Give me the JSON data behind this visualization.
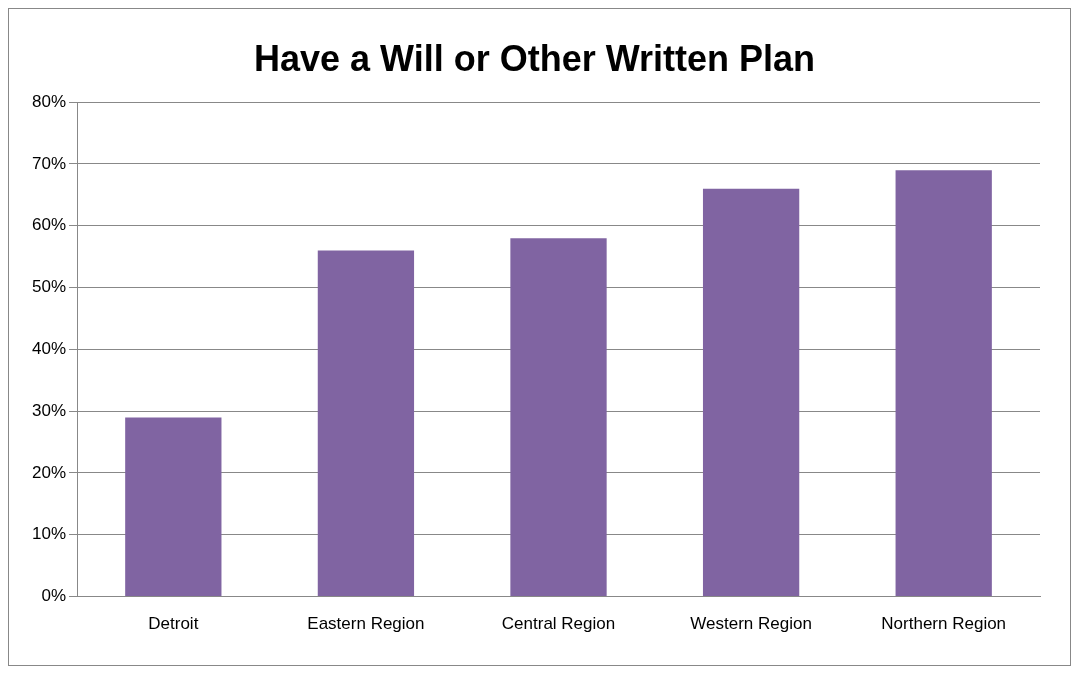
{
  "chart_data": {
    "type": "bar",
    "title": "Have a Will or Other Written Plan",
    "categories": [
      "Detroit",
      "Eastern Region",
      "Central Region",
      "Western Region",
      "Northern Region"
    ],
    "values": [
      29,
      56,
      58,
      66,
      69
    ],
    "color": "#8064a2",
    "ylim": [
      0,
      80
    ],
    "yticks": [
      {
        "value": 0,
        "label": "0%"
      },
      {
        "value": 10,
        "label": "10%"
      },
      {
        "value": 20,
        "label": "20%"
      },
      {
        "value": 30,
        "label": "30%"
      },
      {
        "value": 40,
        "label": "40%"
      },
      {
        "value": 50,
        "label": "50%"
      },
      {
        "value": 60,
        "label": "60%"
      },
      {
        "value": 70,
        "label": "70%"
      },
      {
        "value": 80,
        "label": "80%"
      }
    ],
    "grid": "y",
    "legend": false
  }
}
